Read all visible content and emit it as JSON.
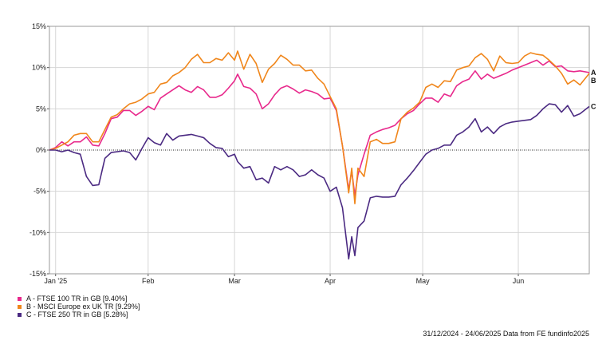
{
  "chart_data": {
    "type": "line",
    "ylim": [
      -15,
      15
    ],
    "yticks": [
      15,
      10,
      5,
      0,
      -5,
      -10,
      -15
    ],
    "ytick_labels": [
      "15%",
      "10%",
      "5%",
      "0%",
      "-5%",
      "-10%",
      "-15%"
    ],
    "xlim": [
      "2024-12-31",
      "2025-06-24"
    ],
    "xticks": [
      {
        "date": "2025-01-02",
        "label": "Jan '25"
      },
      {
        "date": "2025-02-01",
        "label": "Feb"
      },
      {
        "date": "2025-03-01",
        "label": "Mar"
      },
      {
        "date": "2025-04-01",
        "label": "Apr"
      },
      {
        "date": "2025-05-01",
        "label": "May"
      },
      {
        "date": "2025-06-01",
        "label": "Jun"
      }
    ],
    "grid": true,
    "zero_line": "dotted",
    "series": [
      {
        "name": "A - FTSE 100 TR in GB [9.40%]",
        "end_label": "A",
        "color": "#e8298c",
        "points": [
          [
            "2024-12-31",
            0
          ],
          [
            "2025-01-02",
            0.3
          ],
          [
            "2025-01-04",
            1.0
          ],
          [
            "2025-01-06",
            0.5
          ],
          [
            "2025-01-08",
            1.0
          ],
          [
            "2025-01-10",
            1.0
          ],
          [
            "2025-01-12",
            1.6
          ],
          [
            "2025-01-14",
            0.6
          ],
          [
            "2025-01-16",
            0.5
          ],
          [
            "2025-01-18",
            2.0
          ],
          [
            "2025-01-20",
            3.8
          ],
          [
            "2025-01-22",
            4.0
          ],
          [
            "2025-01-24",
            4.8
          ],
          [
            "2025-01-26",
            4.8
          ],
          [
            "2025-01-28",
            4.2
          ],
          [
            "2025-01-30",
            4.7
          ],
          [
            "2025-02-01",
            5.3
          ],
          [
            "2025-02-03",
            4.9
          ],
          [
            "2025-02-05",
            6.3
          ],
          [
            "2025-02-07",
            6.8
          ],
          [
            "2025-02-09",
            7.3
          ],
          [
            "2025-02-11",
            7.8
          ],
          [
            "2025-02-13",
            7.3
          ],
          [
            "2025-02-15",
            7.0
          ],
          [
            "2025-02-17",
            7.7
          ],
          [
            "2025-02-19",
            7.3
          ],
          [
            "2025-02-21",
            6.4
          ],
          [
            "2025-02-23",
            6.4
          ],
          [
            "2025-02-25",
            6.7
          ],
          [
            "2025-02-27",
            7.5
          ],
          [
            "2025-03-01",
            8.4
          ],
          [
            "2025-03-02",
            9.2
          ],
          [
            "2025-03-04",
            7.7
          ],
          [
            "2025-03-06",
            7.5
          ],
          [
            "2025-03-08",
            6.8
          ],
          [
            "2025-03-10",
            5.0
          ],
          [
            "2025-03-12",
            5.6
          ],
          [
            "2025-03-14",
            6.7
          ],
          [
            "2025-03-16",
            7.5
          ],
          [
            "2025-03-18",
            7.8
          ],
          [
            "2025-03-20",
            7.4
          ],
          [
            "2025-03-22",
            6.9
          ],
          [
            "2025-03-24",
            7.3
          ],
          [
            "2025-03-26",
            7.1
          ],
          [
            "2025-03-28",
            6.8
          ],
          [
            "2025-03-30",
            6.2
          ],
          [
            "2025-04-01",
            6.3
          ],
          [
            "2025-04-03",
            4.8
          ],
          [
            "2025-04-05",
            0.5
          ],
          [
            "2025-04-07",
            -4.8
          ],
          [
            "2025-04-08",
            -2.5
          ],
          [
            "2025-04-09",
            -5.5
          ],
          [
            "2025-04-10",
            -3.0
          ],
          [
            "2025-04-12",
            -0.5
          ],
          [
            "2025-04-14",
            1.8
          ],
          [
            "2025-04-16",
            2.2
          ],
          [
            "2025-04-18",
            2.5
          ],
          [
            "2025-04-20",
            2.7
          ],
          [
            "2025-04-22",
            3.0
          ],
          [
            "2025-04-24",
            3.8
          ],
          [
            "2025-04-26",
            4.4
          ],
          [
            "2025-04-28",
            4.8
          ],
          [
            "2025-04-30",
            5.6
          ],
          [
            "2025-05-02",
            6.3
          ],
          [
            "2025-05-04",
            6.3
          ],
          [
            "2025-05-06",
            5.8
          ],
          [
            "2025-05-08",
            6.8
          ],
          [
            "2025-05-10",
            6.5
          ],
          [
            "2025-05-12",
            7.8
          ],
          [
            "2025-05-14",
            8.3
          ],
          [
            "2025-05-16",
            8.6
          ],
          [
            "2025-05-18",
            9.6
          ],
          [
            "2025-05-20",
            8.6
          ],
          [
            "2025-05-22",
            9.2
          ],
          [
            "2025-05-24",
            8.7
          ],
          [
            "2025-05-26",
            9.0
          ],
          [
            "2025-05-28",
            9.3
          ],
          [
            "2025-05-30",
            9.7
          ],
          [
            "2025-06-01",
            10.0
          ],
          [
            "2025-06-03",
            10.3
          ],
          [
            "2025-06-05",
            10.6
          ],
          [
            "2025-06-07",
            10.9
          ],
          [
            "2025-06-09",
            10.3
          ],
          [
            "2025-06-11",
            10.8
          ],
          [
            "2025-06-13",
            10.1
          ],
          [
            "2025-06-15",
            10.2
          ],
          [
            "2025-06-17",
            9.6
          ],
          [
            "2025-06-19",
            9.5
          ],
          [
            "2025-06-21",
            9.6
          ],
          [
            "2025-06-24",
            9.4
          ]
        ]
      },
      {
        "name": "B - MSCI Europe ex UK TR [9.29%]",
        "end_label": "B",
        "color": "#f0861b",
        "points": [
          [
            "2024-12-31",
            0
          ],
          [
            "2025-01-02",
            0.2
          ],
          [
            "2025-01-04",
            0.6
          ],
          [
            "2025-01-06",
            1.0
          ],
          [
            "2025-01-08",
            1.8
          ],
          [
            "2025-01-10",
            2.0
          ],
          [
            "2025-01-12",
            2.0
          ],
          [
            "2025-01-14",
            1.0
          ],
          [
            "2025-01-16",
            1.0
          ],
          [
            "2025-01-18",
            2.5
          ],
          [
            "2025-01-20",
            4.0
          ],
          [
            "2025-01-22",
            4.3
          ],
          [
            "2025-01-24",
            5.0
          ],
          [
            "2025-01-26",
            5.6
          ],
          [
            "2025-01-28",
            5.8
          ],
          [
            "2025-01-30",
            6.2
          ],
          [
            "2025-02-01",
            6.8
          ],
          [
            "2025-02-03",
            7.0
          ],
          [
            "2025-02-05",
            8.0
          ],
          [
            "2025-02-07",
            8.2
          ],
          [
            "2025-02-09",
            9.0
          ],
          [
            "2025-02-11",
            9.4
          ],
          [
            "2025-02-13",
            10.0
          ],
          [
            "2025-02-15",
            11.0
          ],
          [
            "2025-02-17",
            11.6
          ],
          [
            "2025-02-19",
            10.6
          ],
          [
            "2025-02-21",
            10.6
          ],
          [
            "2025-02-23",
            11.1
          ],
          [
            "2025-02-25",
            10.9
          ],
          [
            "2025-02-27",
            11.8
          ],
          [
            "2025-03-01",
            10.9
          ],
          [
            "2025-03-02",
            12.0
          ],
          [
            "2025-03-04",
            9.8
          ],
          [
            "2025-03-06",
            11.6
          ],
          [
            "2025-03-08",
            10.5
          ],
          [
            "2025-03-10",
            8.2
          ],
          [
            "2025-03-12",
            9.8
          ],
          [
            "2025-03-14",
            10.5
          ],
          [
            "2025-03-16",
            11.5
          ],
          [
            "2025-03-18",
            11.0
          ],
          [
            "2025-03-20",
            10.3
          ],
          [
            "2025-03-22",
            10.3
          ],
          [
            "2025-03-24",
            9.6
          ],
          [
            "2025-03-26",
            9.7
          ],
          [
            "2025-03-28",
            8.7
          ],
          [
            "2025-03-30",
            8.0
          ],
          [
            "2025-04-01",
            6.5
          ],
          [
            "2025-04-03",
            5.0
          ],
          [
            "2025-04-05",
            0.5
          ],
          [
            "2025-04-07",
            -5.2
          ],
          [
            "2025-04-08",
            -2.2
          ],
          [
            "2025-04-09",
            -6.5
          ],
          [
            "2025-04-10",
            -2.2
          ],
          [
            "2025-04-12",
            -3.2
          ],
          [
            "2025-04-14",
            1.0
          ],
          [
            "2025-04-16",
            1.3
          ],
          [
            "2025-04-18",
            0.8
          ],
          [
            "2025-04-20",
            0.8
          ],
          [
            "2025-04-22",
            1.0
          ],
          [
            "2025-04-24",
            3.8
          ],
          [
            "2025-04-26",
            4.6
          ],
          [
            "2025-04-28",
            5.1
          ],
          [
            "2025-04-30",
            5.8
          ],
          [
            "2025-05-02",
            7.6
          ],
          [
            "2025-05-04",
            8.0
          ],
          [
            "2025-05-06",
            7.6
          ],
          [
            "2025-05-08",
            8.4
          ],
          [
            "2025-05-10",
            8.3
          ],
          [
            "2025-05-12",
            9.7
          ],
          [
            "2025-05-14",
            10.0
          ],
          [
            "2025-05-16",
            10.2
          ],
          [
            "2025-05-18",
            11.2
          ],
          [
            "2025-05-20",
            11.7
          ],
          [
            "2025-05-22",
            11.0
          ],
          [
            "2025-05-24",
            9.6
          ],
          [
            "2025-05-26",
            11.4
          ],
          [
            "2025-05-28",
            10.6
          ],
          [
            "2025-05-30",
            10.5
          ],
          [
            "2025-06-01",
            10.6
          ],
          [
            "2025-06-03",
            11.4
          ],
          [
            "2025-06-05",
            11.8
          ],
          [
            "2025-06-07",
            11.6
          ],
          [
            "2025-06-09",
            11.5
          ],
          [
            "2025-06-11",
            10.9
          ],
          [
            "2025-06-13",
            10.2
          ],
          [
            "2025-06-15",
            9.3
          ],
          [
            "2025-06-17",
            8.0
          ],
          [
            "2025-06-19",
            8.5
          ],
          [
            "2025-06-21",
            7.9
          ],
          [
            "2025-06-24",
            9.29
          ]
        ]
      },
      {
        "name": "C - FTSE 250 TR in GB [5.28%]",
        "end_label": "C",
        "color": "#4b2a82",
        "points": [
          [
            "2024-12-31",
            0
          ],
          [
            "2025-01-02",
            0.0
          ],
          [
            "2025-01-04",
            -0.2
          ],
          [
            "2025-01-06",
            0.0
          ],
          [
            "2025-01-08",
            -0.3
          ],
          [
            "2025-01-10",
            -0.5
          ],
          [
            "2025-01-12",
            -3.2
          ],
          [
            "2025-01-14",
            -4.3
          ],
          [
            "2025-01-16",
            -4.2
          ],
          [
            "2025-01-18",
            -1.0
          ],
          [
            "2025-01-20",
            -0.3
          ],
          [
            "2025-01-22",
            -0.2
          ],
          [
            "2025-01-24",
            -0.1
          ],
          [
            "2025-01-26",
            -0.3
          ],
          [
            "2025-01-28",
            -1.2
          ],
          [
            "2025-01-30",
            0.2
          ],
          [
            "2025-02-01",
            1.5
          ],
          [
            "2025-02-03",
            0.9
          ],
          [
            "2025-02-05",
            0.6
          ],
          [
            "2025-02-07",
            2.0
          ],
          [
            "2025-02-09",
            1.2
          ],
          [
            "2025-02-11",
            1.7
          ],
          [
            "2025-02-13",
            1.8
          ],
          [
            "2025-02-15",
            1.9
          ],
          [
            "2025-02-17",
            1.7
          ],
          [
            "2025-02-19",
            1.5
          ],
          [
            "2025-02-21",
            0.8
          ],
          [
            "2025-02-23",
            0.3
          ],
          [
            "2025-02-25",
            0.2
          ],
          [
            "2025-02-27",
            -0.8
          ],
          [
            "2025-03-01",
            -0.5
          ],
          [
            "2025-03-02",
            -1.4
          ],
          [
            "2025-03-04",
            -2.2
          ],
          [
            "2025-03-06",
            -2.0
          ],
          [
            "2025-03-08",
            -3.6
          ],
          [
            "2025-03-10",
            -3.4
          ],
          [
            "2025-03-12",
            -4.0
          ],
          [
            "2025-03-14",
            -2.0
          ],
          [
            "2025-03-16",
            -2.4
          ],
          [
            "2025-03-18",
            -2.0
          ],
          [
            "2025-03-20",
            -2.4
          ],
          [
            "2025-03-22",
            -3.2
          ],
          [
            "2025-03-24",
            -3.0
          ],
          [
            "2025-03-26",
            -2.4
          ],
          [
            "2025-03-28",
            -3.0
          ],
          [
            "2025-03-30",
            -3.4
          ],
          [
            "2025-04-01",
            -5.0
          ],
          [
            "2025-04-03",
            -4.5
          ],
          [
            "2025-04-05",
            -7.0
          ],
          [
            "2025-04-07",
            -13.2
          ],
          [
            "2025-04-08",
            -10.5
          ],
          [
            "2025-04-09",
            -12.8
          ],
          [
            "2025-04-10",
            -9.4
          ],
          [
            "2025-04-12",
            -8.6
          ],
          [
            "2025-04-14",
            -5.8
          ],
          [
            "2025-04-16",
            -5.6
          ],
          [
            "2025-04-18",
            -5.7
          ],
          [
            "2025-04-20",
            -5.7
          ],
          [
            "2025-04-22",
            -5.6
          ],
          [
            "2025-04-24",
            -4.2
          ],
          [
            "2025-04-26",
            -3.4
          ],
          [
            "2025-04-28",
            -2.5
          ],
          [
            "2025-04-30",
            -1.5
          ],
          [
            "2025-05-02",
            -0.5
          ],
          [
            "2025-05-04",
            0.0
          ],
          [
            "2025-05-06",
            0.2
          ],
          [
            "2025-05-08",
            0.6
          ],
          [
            "2025-05-10",
            0.6
          ],
          [
            "2025-05-12",
            1.8
          ],
          [
            "2025-05-14",
            2.2
          ],
          [
            "2025-05-16",
            2.8
          ],
          [
            "2025-05-18",
            3.8
          ],
          [
            "2025-05-20",
            2.2
          ],
          [
            "2025-05-22",
            2.8
          ],
          [
            "2025-05-24",
            2.0
          ],
          [
            "2025-05-26",
            2.8
          ],
          [
            "2025-05-28",
            3.2
          ],
          [
            "2025-05-30",
            3.4
          ],
          [
            "2025-06-01",
            3.5
          ],
          [
            "2025-06-03",
            3.6
          ],
          [
            "2025-06-05",
            3.7
          ],
          [
            "2025-06-07",
            4.2
          ],
          [
            "2025-06-09",
            5.0
          ],
          [
            "2025-06-11",
            5.6
          ],
          [
            "2025-06-13",
            5.5
          ],
          [
            "2025-06-15",
            4.6
          ],
          [
            "2025-06-17",
            5.4
          ],
          [
            "2025-06-19",
            4.1
          ],
          [
            "2025-06-21",
            4.4
          ],
          [
            "2025-06-24",
            5.28
          ]
        ]
      }
    ]
  },
  "legend": [
    {
      "label": "A - FTSE 100 TR in GB [9.40%]",
      "color": "#e8298c"
    },
    {
      "label": "B - MSCI Europe ex UK TR [9.29%]",
      "color": "#f0861b"
    },
    {
      "label": "C - FTSE 250 TR in GB [5.28%]",
      "color": "#4b2a82"
    }
  ],
  "footer": "31/12/2024 - 24/06/2025 Data from FE fundinfo2025"
}
